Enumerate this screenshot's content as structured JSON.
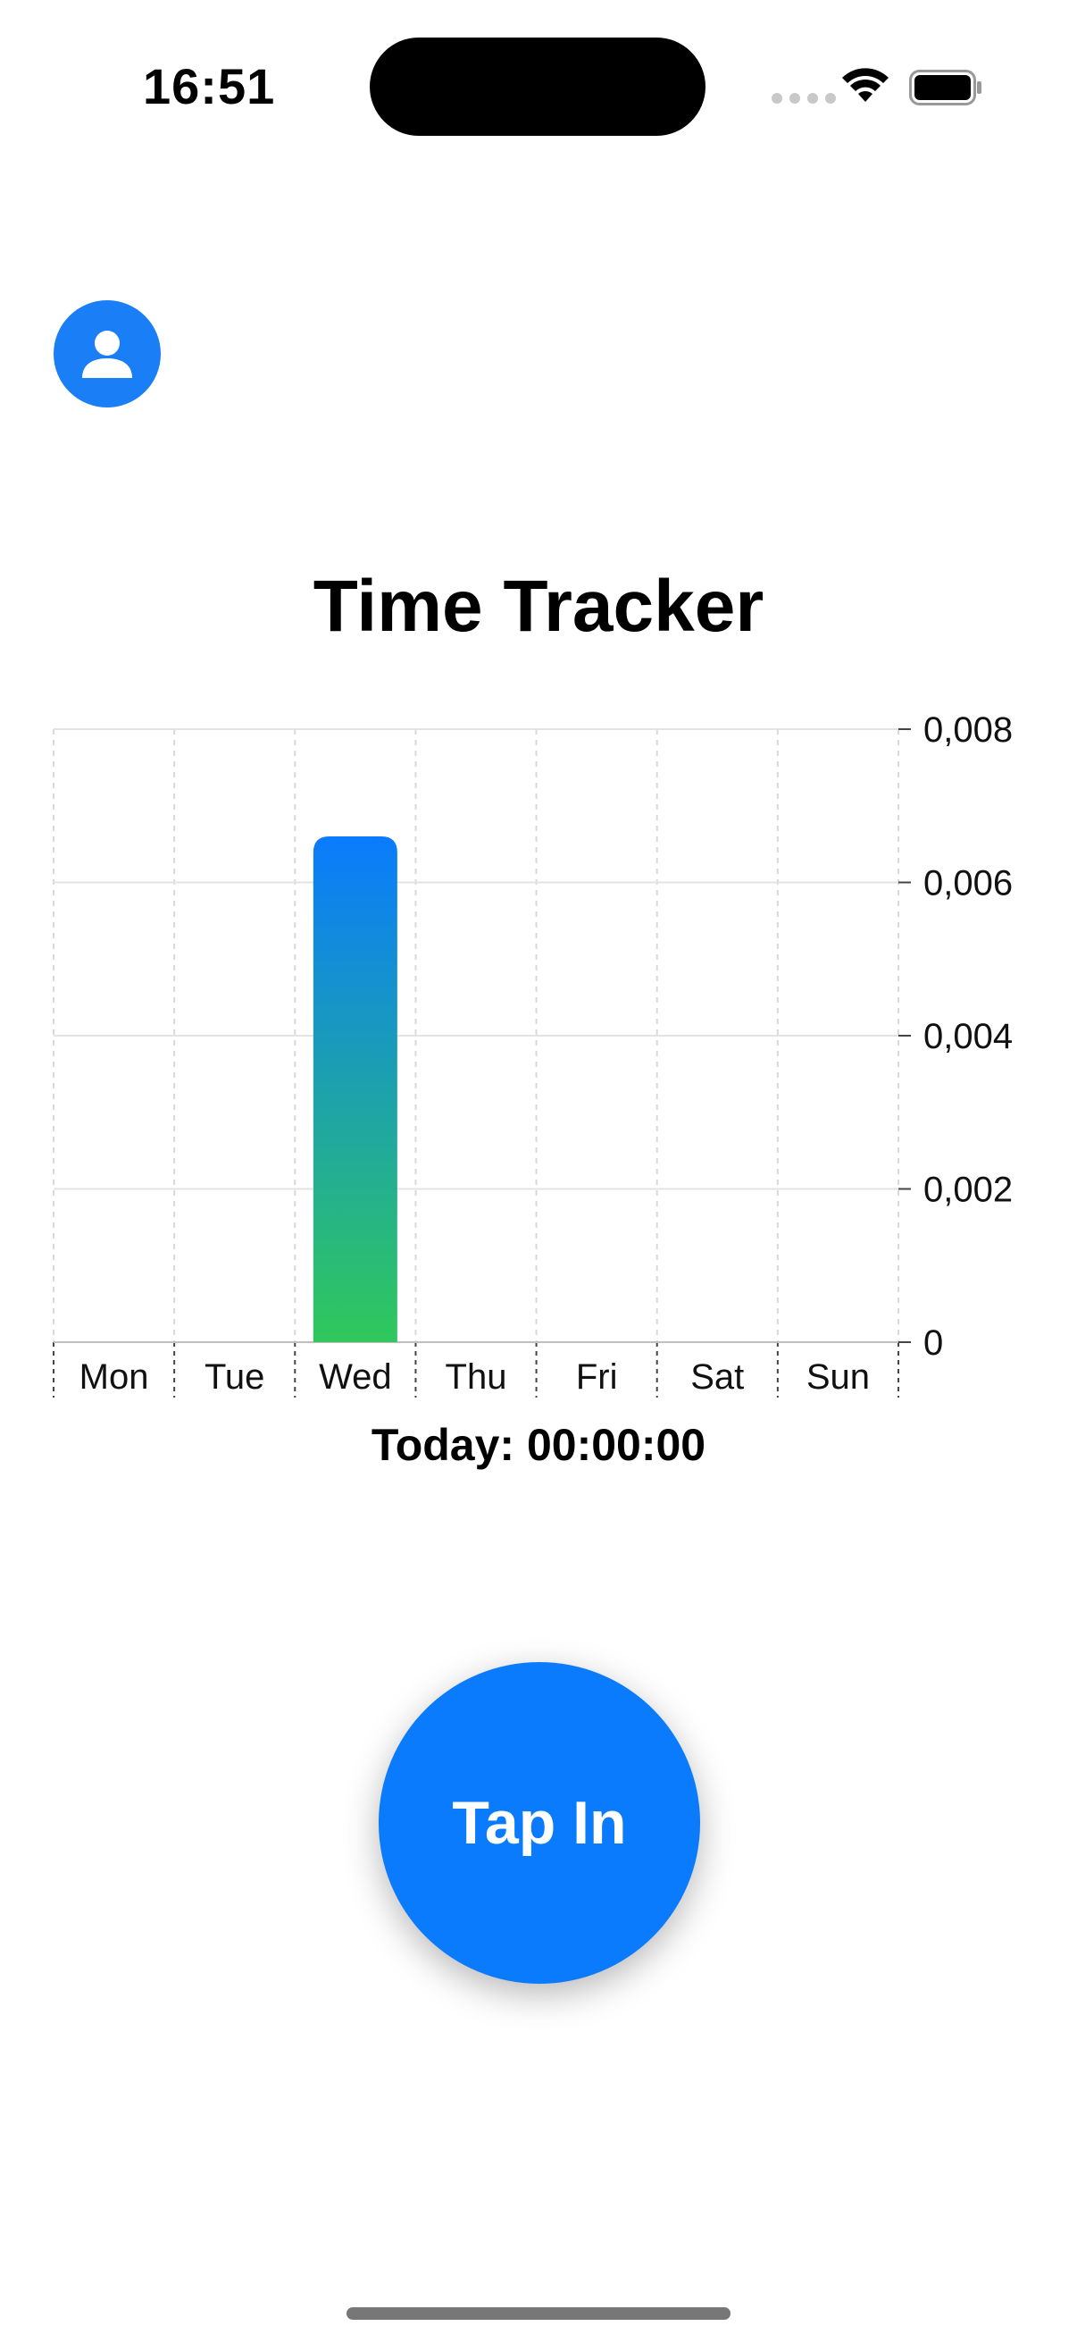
{
  "status_bar": {
    "time": "16:51"
  },
  "profile": {
    "icon": "person-icon"
  },
  "title": "Time Tracker",
  "chart_data": {
    "type": "bar",
    "categories": [
      "Mon",
      "Tue",
      "Wed",
      "Thu",
      "Fri",
      "Sat",
      "Sun"
    ],
    "values": [
      0,
      0,
      0.0066,
      0,
      0,
      0,
      0
    ],
    "yticks": [
      "0",
      "0,002",
      "0,004",
      "0,006",
      "0,008"
    ],
    "ylim": [
      0,
      0.008
    ],
    "title": "",
    "xlabel": "",
    "ylabel": "",
    "grid": true,
    "bar_gradient": [
      "#0a7bfd",
      "#30c85c"
    ]
  },
  "today": "Today: 00:00:00",
  "tap_button": {
    "label": "Tap In"
  },
  "colors": {
    "accent": "#0a7bfd"
  }
}
